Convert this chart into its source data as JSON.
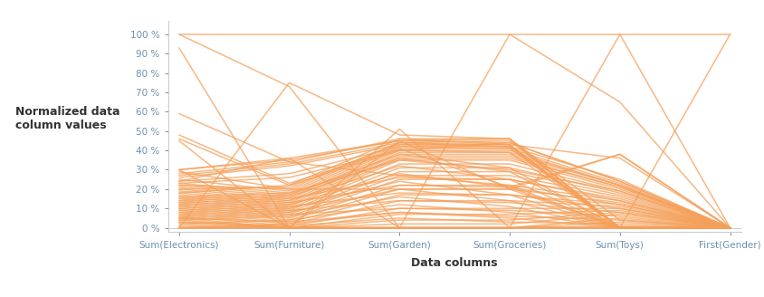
{
  "axes_labels": [
    "Sum(Electronics)",
    "Sum(Furniture)",
    "Sum(Garden)",
    "Sum(Groceries)",
    "Sum(Toys)",
    "First(Gender)"
  ],
  "ylabel": "Normalized data\ncolumn values",
  "xlabel": "Data columns",
  "line_color": "#F5A05A",
  "line_alpha": 0.75,
  "line_width": 1.1,
  "yticks": [
    0,
    10,
    20,
    30,
    40,
    50,
    60,
    70,
    80,
    90,
    100
  ],
  "ytick_labels": [
    "0 %",
    "10 %",
    "20 %",
    "30 %",
    "40 %",
    "50 %",
    "60 %",
    "70 %",
    "80 %",
    "90 %",
    "100 %"
  ],
  "data": [
    [
      100,
      73,
      0,
      0,
      0,
      0
    ],
    [
      93,
      0,
      0,
      0,
      0,
      0
    ],
    [
      59,
      34,
      27,
      22,
      0,
      0
    ],
    [
      48,
      23,
      41,
      21,
      0,
      0
    ],
    [
      46,
      22,
      40,
      44,
      24,
      0
    ],
    [
      30,
      35,
      45,
      46,
      4,
      0
    ],
    [
      29,
      20,
      44,
      45,
      0,
      0
    ],
    [
      25,
      19,
      43,
      43,
      36,
      0
    ],
    [
      23,
      18,
      42,
      42,
      25,
      0
    ],
    [
      22,
      17,
      41,
      41,
      23,
      0
    ],
    [
      21,
      16,
      40,
      40,
      22,
      0
    ],
    [
      20,
      15,
      39,
      39,
      22,
      0
    ],
    [
      19,
      14,
      38,
      38,
      22,
      0
    ],
    [
      18,
      13,
      37,
      37,
      21,
      0
    ],
    [
      17,
      12,
      36,
      36,
      21,
      0
    ],
    [
      16,
      11,
      35,
      35,
      20,
      0
    ],
    [
      15,
      10,
      33,
      33,
      19,
      0
    ],
    [
      14,
      9,
      31,
      31,
      18,
      0
    ],
    [
      13,
      8,
      29,
      29,
      17,
      0
    ],
    [
      12,
      7,
      27,
      27,
      16,
      0
    ],
    [
      11,
      6,
      25,
      25,
      15,
      0
    ],
    [
      10,
      5,
      22,
      22,
      14,
      0
    ],
    [
      9,
      4,
      20,
      20,
      13,
      0
    ],
    [
      8,
      3,
      17,
      17,
      12,
      0
    ],
    [
      7,
      2,
      14,
      14,
      11,
      0
    ],
    [
      6,
      1,
      10,
      10,
      10,
      0
    ],
    [
      5,
      0,
      7,
      7,
      9,
      0
    ],
    [
      4,
      0,
      4,
      4,
      8,
      0
    ],
    [
      3,
      0,
      2,
      2,
      7,
      0
    ],
    [
      2,
      0,
      0,
      0,
      5,
      0
    ],
    [
      1,
      0,
      0,
      0,
      3,
      0
    ],
    [
      0,
      0,
      0,
      0,
      1,
      0
    ],
    [
      100,
      100,
      100,
      100,
      100,
      100
    ],
    [
      0,
      75,
      48,
      46,
      0,
      0
    ],
    [
      0,
      0,
      51,
      0,
      0,
      0
    ],
    [
      22,
      20,
      20,
      20,
      0,
      0
    ],
    [
      18,
      22,
      46,
      43,
      0,
      0
    ],
    [
      20,
      21,
      44,
      42,
      0,
      0
    ],
    [
      15,
      17,
      38,
      31,
      0,
      0
    ],
    [
      14,
      16,
      36,
      29,
      0,
      0
    ],
    [
      12,
      14,
      32,
      25,
      0,
      0
    ],
    [
      10,
      12,
      28,
      21,
      38,
      0
    ],
    [
      8,
      10,
      24,
      17,
      0,
      0
    ],
    [
      6,
      8,
      20,
      14,
      0,
      0
    ],
    [
      4,
      6,
      16,
      11,
      0,
      0
    ],
    [
      2,
      4,
      12,
      8,
      0,
      0
    ],
    [
      0,
      2,
      8,
      5,
      0,
      0
    ],
    [
      26,
      32,
      43,
      42,
      0,
      0
    ],
    [
      27,
      33,
      44,
      43,
      0,
      0
    ],
    [
      28,
      34,
      46,
      46,
      0,
      0
    ],
    [
      24,
      28,
      42,
      41,
      0,
      0
    ],
    [
      23,
      26,
      40,
      39,
      0,
      0
    ],
    [
      30,
      36,
      45,
      44,
      24,
      0
    ],
    [
      5,
      7,
      10,
      9,
      6,
      0
    ],
    [
      7,
      9,
      14,
      13,
      8,
      0
    ],
    [
      9,
      11,
      18,
      17,
      10,
      0
    ],
    [
      11,
      13,
      22,
      21,
      12,
      0
    ],
    [
      13,
      15,
      26,
      25,
      14,
      0
    ],
    [
      0,
      0,
      0,
      0,
      0,
      100
    ],
    [
      5,
      3,
      8,
      6,
      4,
      0
    ],
    [
      3,
      1,
      5,
      3,
      2,
      0
    ],
    [
      16,
      18,
      35,
      30,
      19,
      0
    ],
    [
      24,
      36,
      0,
      100,
      65,
      0
    ],
    [
      45,
      0,
      0,
      0,
      100,
      0
    ],
    [
      30,
      0,
      45,
      20,
      38,
      0
    ]
  ]
}
